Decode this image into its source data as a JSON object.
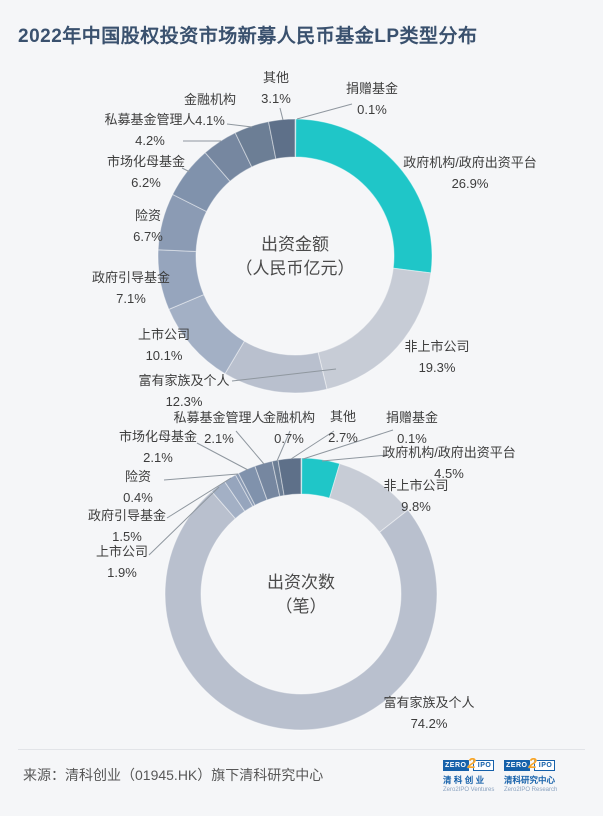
{
  "header": {
    "title": "2022年中国股权投资市场新募人民币基金LP类型分布"
  },
  "colors": {
    "background": "#f5f6f8",
    "title_text": "#3a516e",
    "label_text": "#3d3d3d",
    "center_text": "#4a4a4a",
    "leader_line": "#8f979f",
    "accent_teal": "#1fc6c8",
    "logo_blue": "#1661aa",
    "logo_orange": "#f7a426"
  },
  "chart_data": [
    {
      "type": "pie",
      "donut": true,
      "title": "出资金额",
      "subtitle": "（人民币亿元）",
      "direction": "clockwise",
      "start_angle_deg": 0,
      "categories": [
        "捐赠基金",
        "政府机构/政府出资平台",
        "非上市公司",
        "富有家族及个人",
        "上市公司",
        "政府引导基金",
        "险资",
        "市场化母基金",
        "私募基金管理人",
        "金融机构",
        "其他"
      ],
      "values": [
        0.1,
        26.9,
        19.3,
        12.3,
        10.1,
        7.1,
        6.7,
        6.2,
        4.2,
        4.1,
        3.1
      ],
      "percent_labels": [
        "0.1%",
        "26.9%",
        "19.3%",
        "12.3%",
        "10.1%",
        "7.1%",
        "6.7%",
        "6.2%",
        "4.2%",
        "4.1%",
        "3.1%"
      ],
      "colors": [
        "#93a5bc",
        "#1fc6c8",
        "#c7ccd6",
        "#b9c0ce",
        "#a3b0c5",
        "#96a5bd",
        "#8b9bb4",
        "#8092ac",
        "#7687a0",
        "#6c7e95",
        "#5e7089"
      ]
    },
    {
      "type": "pie",
      "donut": true,
      "title": "出资次数",
      "subtitle": "（笔）",
      "direction": "clockwise",
      "start_angle_deg": 0,
      "categories": [
        "捐赠基金",
        "政府机构/政府出资平台",
        "非上市公司",
        "富有家族及个人",
        "上市公司",
        "政府引导基金",
        "险资",
        "市场化母基金",
        "私募基金管理人",
        "金融机构",
        "其他"
      ],
      "values": [
        0.1,
        4.5,
        9.8,
        74.2,
        1.9,
        1.5,
        0.4,
        2.1,
        2.1,
        0.7,
        2.7
      ],
      "percent_labels": [
        "0.1%",
        "4.5%",
        "9.8%",
        "74.2%",
        "1.9%",
        "1.5%",
        "0.4%",
        "2.1%",
        "2.1%",
        "0.7%",
        "2.7%"
      ],
      "colors": [
        "#93a5bc",
        "#1fc6c8",
        "#c7ccd6",
        "#b9c0ce",
        "#a3b0c5",
        "#96a5bd",
        "#8b9bb4",
        "#8092ac",
        "#7687a0",
        "#6c7e95",
        "#5e7089"
      ]
    }
  ],
  "footer": {
    "source": "来源：清科创业（01945.HK）旗下清科研究中心",
    "logos": [
      {
        "zero": "ZERO",
        "two": "2",
        "ipo": "IPO",
        "cn": "清 科 创 业",
        "en": "Zero2IPO Ventures"
      },
      {
        "zero": "ZERO",
        "two": "2",
        "ipo": "IPO",
        "cn": "清科研究中心",
        "en": "Zero2IPO Research"
      }
    ]
  }
}
